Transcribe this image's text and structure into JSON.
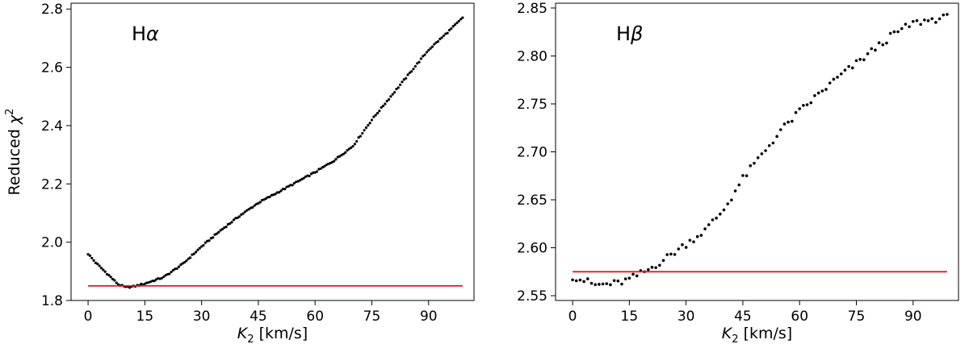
{
  "chart_data": [
    {
      "type": "scatter",
      "annotation_main": "H",
      "annotation_greek": "α",
      "xlabel_var": "K",
      "xlabel_sub": "2",
      "xlabel_unit": " [km/s]",
      "ylabel_text": "Reduced ",
      "ylabel_var": "χ",
      "ylabel_sup": "2",
      "xlim": [
        -4.5,
        102
      ],
      "ylim": [
        1.8,
        2.82
      ],
      "xticks": [
        0,
        15,
        30,
        45,
        60,
        75,
        90
      ],
      "yticks": [
        1.8,
        2.0,
        2.2,
        2.4,
        2.6,
        2.8
      ],
      "ytick_labels": [
        "1.8",
        "2.0",
        "2.2",
        "2.4",
        "2.6",
        "2.8"
      ],
      "point_color": "#000000",
      "reference_line": {
        "y": 1.85,
        "x": [
          0,
          99
        ],
        "color": "#e31a1c"
      },
      "curve_knots": {
        "x": [
          0,
          2,
          4,
          6,
          8,
          10,
          12,
          15,
          20,
          25,
          30,
          35,
          40,
          45,
          50,
          55,
          60,
          65,
          70,
          75,
          80,
          85,
          90,
          95,
          99
        ],
        "y": [
          1.96,
          1.93,
          1.905,
          1.88,
          1.855,
          1.845,
          1.848,
          1.858,
          1.88,
          1.925,
          1.985,
          2.04,
          2.09,
          2.135,
          2.17,
          2.205,
          2.24,
          2.28,
          2.33,
          2.42,
          2.5,
          2.58,
          2.66,
          2.72,
          2.77
        ]
      },
      "x_start": 0,
      "x_end": 99,
      "x_step": 0.5
    },
    {
      "type": "scatter",
      "annotation_main": "H",
      "annotation_greek": "β",
      "xlabel_var": "K",
      "xlabel_sub": "2",
      "xlabel_unit": " [km/s]",
      "ylabel_text": "",
      "ylabel_var": "",
      "ylabel_sup": "",
      "xlim": [
        -4.5,
        102
      ],
      "ylim": [
        2.545,
        2.855
      ],
      "xticks": [
        0,
        15,
        30,
        45,
        60,
        75,
        90
      ],
      "yticks": [
        2.55,
        2.6,
        2.65,
        2.7,
        2.75,
        2.8,
        2.85
      ],
      "ytick_labels": [
        "2.55",
        "2.60",
        "2.65",
        "2.70",
        "2.75",
        "2.80",
        "2.85"
      ],
      "point_color": "#000000",
      "reference_line": {
        "y": 2.575,
        "x": [
          0,
          99
        ],
        "color": "#e31a1c"
      },
      "curve_knots": {
        "x": [
          0,
          3,
          6,
          9,
          12,
          15,
          20,
          25,
          30,
          35,
          40,
          45,
          50,
          55,
          60,
          65,
          70,
          75,
          80,
          85,
          90,
          95,
          99
        ],
        "y": [
          2.57,
          2.566,
          2.561,
          2.562,
          2.563,
          2.567,
          2.577,
          2.59,
          2.604,
          2.618,
          2.64,
          2.672,
          2.697,
          2.722,
          2.742,
          2.76,
          2.777,
          2.792,
          2.808,
          2.823,
          2.834,
          2.838,
          2.84
        ]
      },
      "x_start": 0,
      "x_end": 99,
      "x_step": 1
    }
  ]
}
